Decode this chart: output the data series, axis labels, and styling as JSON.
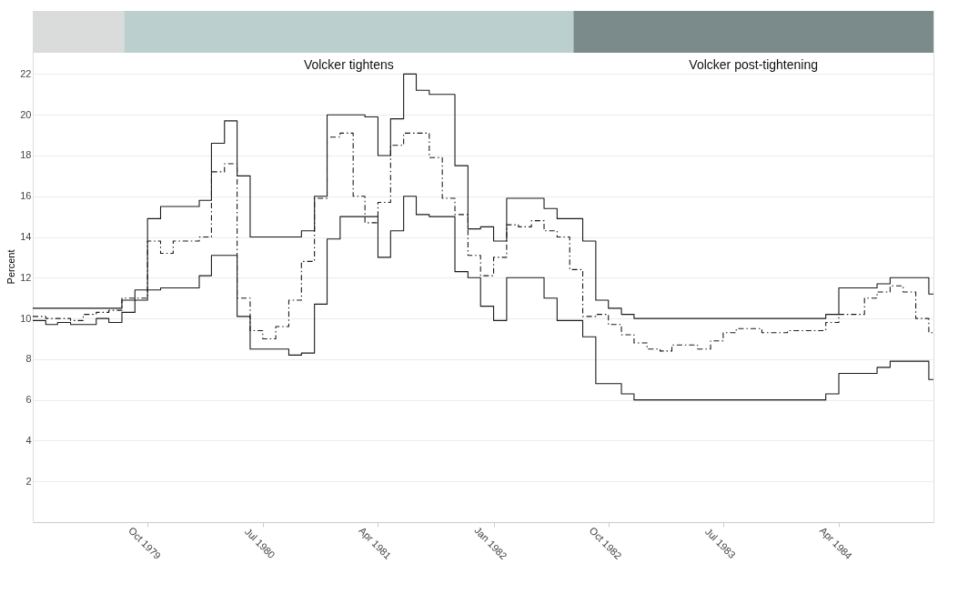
{
  "chart_data": {
    "type": "step",
    "ylabel": "Percent",
    "xlim": [
      "1979-01",
      "1984-11-12"
    ],
    "ylim": [
      0,
      25.1
    ],
    "xticks": [
      {
        "value": "1979-10",
        "label": "Oct 1979"
      },
      {
        "value": "1980-07",
        "label": "Jul 1980"
      },
      {
        "value": "1981-04",
        "label": "Apr 1981"
      },
      {
        "value": "1982-01",
        "label": "Jan 1982"
      },
      {
        "value": "1982-10",
        "label": "Oct 1982"
      },
      {
        "value": "1983-07",
        "label": "Jul 1983"
      },
      {
        "value": "1984-04",
        "label": "Apr 1984"
      }
    ],
    "yticks": [
      2,
      4,
      6,
      8,
      10,
      12,
      14,
      16,
      18,
      20,
      22
    ],
    "grid": "y",
    "marker": "none",
    "bands": [
      {
        "axis": "x",
        "from": "1979-01",
        "to": "1979-08-06",
        "label": null,
        "color": "#dadcdc"
      },
      {
        "axis": "x",
        "from": "1979-08-06",
        "to": "1982-07-10",
        "label": "Volcker tightens",
        "color": "#bccfcf"
      },
      {
        "axis": "x",
        "from": "1982-07-10",
        "to": "1984-11-12",
        "label": "Volcker post-tightening",
        "color": "#7b8a8a"
      }
    ],
    "series": [
      {
        "color": "#1a1a1a",
        "line_style": "solid",
        "x": [
          "1979-01",
          "1979-08",
          "1979-09",
          "1979-10",
          "1979-11",
          "1980-02",
          "1980-03",
          "1980-04",
          "1980-05",
          "1980-06",
          "1980-10",
          "1980-11",
          "1980-12",
          "1981-03",
          "1981-04",
          "1981-05",
          "1981-06",
          "1981-07",
          "1981-08",
          "1981-10",
          "1981-11",
          "1981-12",
          "1982-01",
          "1982-02",
          "1982-05",
          "1982-06",
          "1982-08",
          "1982-09",
          "1982-10",
          "1982-11",
          "1982-12",
          "1984-03",
          "1984-04",
          "1984-07",
          "1984-08",
          "1984-11",
          "1984-11-12"
        ],
        "values": [
          10.5,
          10.9,
          11.4,
          14.9,
          15.5,
          15.8,
          18.6,
          19.7,
          17.0,
          14.0,
          14.3,
          16.0,
          20.0,
          19.9,
          18.0,
          19.8,
          22.0,
          21.2,
          21.0,
          17.5,
          14.4,
          14.5,
          13.8,
          15.9,
          15.4,
          14.9,
          13.8,
          10.9,
          10.5,
          10.2,
          10.0,
          10.2,
          11.5,
          11.7,
          12.0,
          11.2,
          11.2
        ]
      },
      {
        "color": "#1a1a1a",
        "line_style": "solid",
        "x": [
          "1979-01",
          "1979-02",
          "1979-03",
          "1979-04",
          "1979-06",
          "1979-07",
          "1979-08",
          "1979-09",
          "1979-10",
          "1979-11",
          "1980-02",
          "1980-03",
          "1980-05",
          "1980-06",
          "1980-09",
          "1980-10",
          "1980-11",
          "1980-12",
          "1981-01",
          "1981-04",
          "1981-05",
          "1981-06",
          "1981-07",
          "1981-08",
          "1981-10",
          "1981-11",
          "1981-12",
          "1982-01",
          "1982-02",
          "1982-05",
          "1982-06",
          "1982-08",
          "1982-09",
          "1982-11",
          "1982-12",
          "1984-03",
          "1984-04",
          "1984-07",
          "1984-08",
          "1984-11",
          "1984-11-12"
        ],
        "values": [
          9.9,
          9.7,
          9.8,
          9.7,
          10.0,
          9.8,
          10.3,
          10.9,
          11.4,
          11.5,
          12.1,
          13.1,
          10.1,
          8.5,
          8.2,
          8.3,
          10.7,
          13.9,
          15.0,
          13.0,
          14.3,
          16.0,
          15.1,
          15.0,
          12.3,
          12.0,
          10.6,
          9.9,
          12.0,
          11.0,
          9.9,
          9.1,
          6.8,
          6.3,
          6.0,
          6.3,
          7.3,
          7.6,
          7.9,
          7.0,
          7.0
        ]
      },
      {
        "color": "#1a1a1a",
        "line_style": "dashed",
        "x": [
          "1979-01",
          "1979-02",
          "1979-04",
          "1979-05",
          "1979-06",
          "1979-07",
          "1979-08",
          "1979-10",
          "1979-11",
          "1979-12",
          "1980-02",
          "1980-03",
          "1980-04",
          "1980-05",
          "1980-06",
          "1980-07",
          "1980-08",
          "1980-09",
          "1980-10",
          "1980-11",
          "1980-12",
          "1981-01",
          "1981-02",
          "1981-03",
          "1981-04",
          "1981-05",
          "1981-06",
          "1981-08",
          "1981-09",
          "1981-10",
          "1981-11",
          "1981-12",
          "1982-01",
          "1982-02",
          "1982-03",
          "1982-04",
          "1982-05",
          "1982-06",
          "1982-07",
          "1982-08",
          "1982-09",
          "1982-10",
          "1982-11",
          "1982-12",
          "1983-01",
          "1983-02",
          "1983-03",
          "1983-05",
          "1983-06",
          "1983-07",
          "1983-08",
          "1983-10",
          "1983-11",
          "1983-12",
          "1984-03",
          "1984-04",
          "1984-06",
          "1984-07",
          "1984-08",
          "1984-09",
          "1984-10",
          "1984-11",
          "1984-11-12"
        ],
        "values": [
          10.1,
          10.0,
          9.9,
          10.2,
          10.3,
          10.4,
          11.0,
          13.8,
          13.2,
          13.8,
          14.0,
          17.2,
          17.6,
          11.0,
          9.4,
          9.0,
          9.6,
          10.9,
          12.8,
          15.9,
          18.9,
          19.1,
          16.0,
          14.7,
          15.7,
          18.5,
          19.1,
          17.9,
          15.9,
          15.1,
          13.1,
          12.1,
          13.0,
          14.6,
          14.5,
          14.8,
          14.3,
          14.0,
          12.4,
          10.1,
          10.2,
          9.7,
          9.2,
          8.8,
          8.5,
          8.4,
          8.7,
          8.5,
          8.9,
          9.3,
          9.5,
          9.3,
          9.3,
          9.4,
          9.8,
          10.2,
          11.0,
          11.3,
          11.6,
          11.3,
          10.0,
          9.3,
          9.3
        ]
      }
    ]
  }
}
